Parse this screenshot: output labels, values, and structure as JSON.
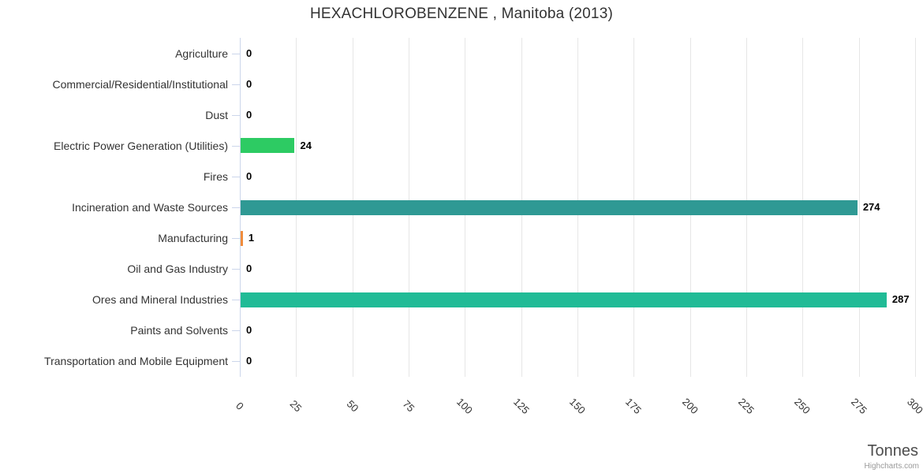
{
  "chart": {
    "title": "HEXACHLOROBENZENE , Manitoba (2013)",
    "x_axis_title": "Tonnes",
    "credit": "Highcharts.com"
  },
  "chart_data": {
    "type": "bar",
    "orientation": "horizontal",
    "title": "HEXACHLOROBENZENE , Manitoba (2013)",
    "categories": [
      "Agriculture",
      "Commercial/Residential/Institutional",
      "Dust",
      "Electric Power Generation (Utilities)",
      "Fires",
      "Incineration and Waste Sources",
      "Manufacturing",
      "Oil and Gas Industry",
      "Ores and Mineral Industries",
      "Paints and Solvents",
      "Transportation and Mobile Equipment"
    ],
    "values": [
      0,
      0,
      0,
      24,
      0,
      274,
      1,
      0,
      287,
      0,
      0
    ],
    "data_labels": [
      "0",
      "0",
      "0",
      "24",
      "0",
      "274",
      "1",
      "0",
      "287",
      "0",
      "0"
    ],
    "bar_colors": [
      null,
      null,
      null,
      "#2dcb63",
      null,
      "#2f9994",
      "#f08c3c",
      null,
      "#20bb96",
      null,
      null
    ],
    "xlabel": "Tonnes",
    "xlim": [
      0,
      300
    ],
    "tick_interval": 25,
    "x_tick_labels": [
      "0",
      "25",
      "50",
      "75",
      "100",
      "125",
      "150",
      "175",
      "200",
      "225",
      "250",
      "275",
      "300"
    ],
    "grid": true,
    "legend": false,
    "colors": {
      "background": "#ffffff",
      "grid_line": "#e6e6e6",
      "axis_line": "#ccd6eb",
      "tick": "#ccd6eb",
      "title_text": "#333333",
      "category_text": "#333333",
      "data_label_text": "#000000",
      "x_label_text": "#333333",
      "axis_title_text": "#4d4d4d",
      "credit_text": "#999999"
    }
  }
}
